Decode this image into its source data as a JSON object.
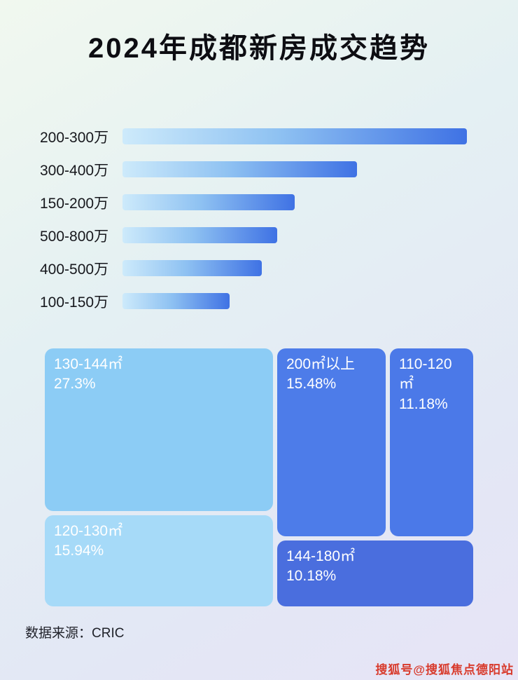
{
  "title": "2024年成都新房成交趋势",
  "footer": {
    "source": "数据来源：CRIC"
  },
  "watermark": "搜狐号@搜狐焦点德阳站",
  "bars": {
    "items": [
      {
        "label": "200-300万",
        "len_pct": 100
      },
      {
        "label": "300-400万",
        "len_pct": 68
      },
      {
        "label": "150-200万",
        "len_pct": 50
      },
      {
        "label": "500-800万",
        "len_pct": 45
      },
      {
        "label": "400-500万",
        "len_pct": 40.5
      },
      {
        "label": "100-150万",
        "len_pct": 31
      }
    ]
  },
  "treemap": {
    "blocks": [
      {
        "label": "130-144㎡",
        "pct": "27.3%",
        "color": "#8cccf5"
      },
      {
        "label": "120-130㎡",
        "pct": "15.94%",
        "color": "#a6daf8"
      },
      {
        "label": "200㎡以上",
        "pct": "15.48%",
        "color": "#4d7ce9"
      },
      {
        "label": "110-120㎡",
        "pct": "11.18%",
        "color": "#4b79e8"
      },
      {
        "label": "144-180㎡",
        "pct": "10.18%",
        "color": "#4a6ede"
      }
    ]
  },
  "chart_data": [
    {
      "type": "bar",
      "orientation": "horizontal",
      "title": "2024年成都新房成交趋势",
      "categories": [
        "200-300万",
        "300-400万",
        "150-200万",
        "500-800万",
        "400-500万",
        "100-150万"
      ],
      "values": [
        100,
        68,
        50,
        45,
        40.5,
        31
      ],
      "value_note": "relative bar lengths, no numeric labels shown in image",
      "xlabel": "",
      "ylabel": "",
      "grid": false,
      "legend": false
    },
    {
      "type": "treemap",
      "title": "",
      "items": [
        {
          "label": "130-144㎡",
          "value": 27.3
        },
        {
          "label": "120-130㎡",
          "value": 15.94
        },
        {
          "label": "200㎡以上",
          "value": 15.48
        },
        {
          "label": "110-120㎡",
          "value": 11.18
        },
        {
          "label": "144-180㎡",
          "value": 10.18
        }
      ],
      "unit": "%"
    }
  ]
}
